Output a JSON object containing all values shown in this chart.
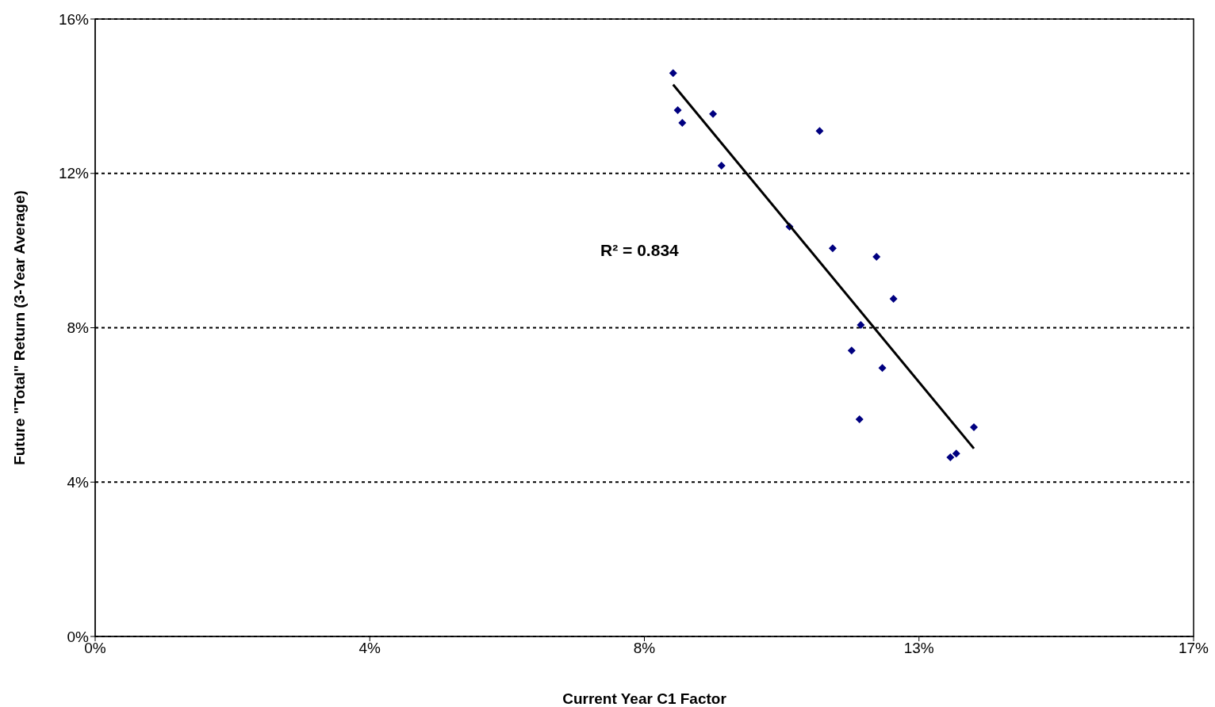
{
  "chart_data": {
    "type": "scatter",
    "xlabel": "Current Year C1 Factor",
    "ylabel": "Future \"Total\" Return (3-Year Average)",
    "xlim": [
      0,
      16.8
    ],
    "xticks": [
      {
        "value": 0,
        "label": "0%"
      },
      {
        "value": 4.2,
        "label": "4%"
      },
      {
        "value": 8.4,
        "label": "8%"
      },
      {
        "value": 12.6,
        "label": "13%"
      },
      {
        "value": 16.8,
        "label": "17%"
      }
    ],
    "ylim": [
      0,
      16
    ],
    "yticks": [
      {
        "value": 0,
        "label": "0%"
      },
      {
        "value": 4,
        "label": "4%"
      },
      {
        "value": 8,
        "label": "8%"
      },
      {
        "value": 12,
        "label": "12%"
      },
      {
        "value": 16,
        "label": "16%"
      }
    ],
    "grid": "y",
    "series": [
      {
        "marker": "diamond",
        "color": "#000080",
        "x": [
          8.84,
          8.91,
          8.98,
          9.45,
          9.58,
          10.62,
          11.08,
          11.28,
          11.95,
          12.21,
          11.71,
          11.57,
          12.04,
          11.69,
          13.44,
          13.08,
          13.17
        ],
        "values": [
          14.6,
          13.64,
          13.31,
          13.54,
          12.2,
          10.62,
          13.1,
          10.06,
          9.84,
          8.75,
          8.07,
          7.41,
          6.96,
          5.63,
          5.42,
          4.64,
          4.74
        ]
      },
      {
        "type": "line",
        "marker": "none",
        "color": "#000000",
        "x": [
          8.84,
          13.44
        ],
        "values": [
          14.3,
          4.87
        ]
      }
    ],
    "annotations": [
      "R² = 0.834"
    ]
  }
}
